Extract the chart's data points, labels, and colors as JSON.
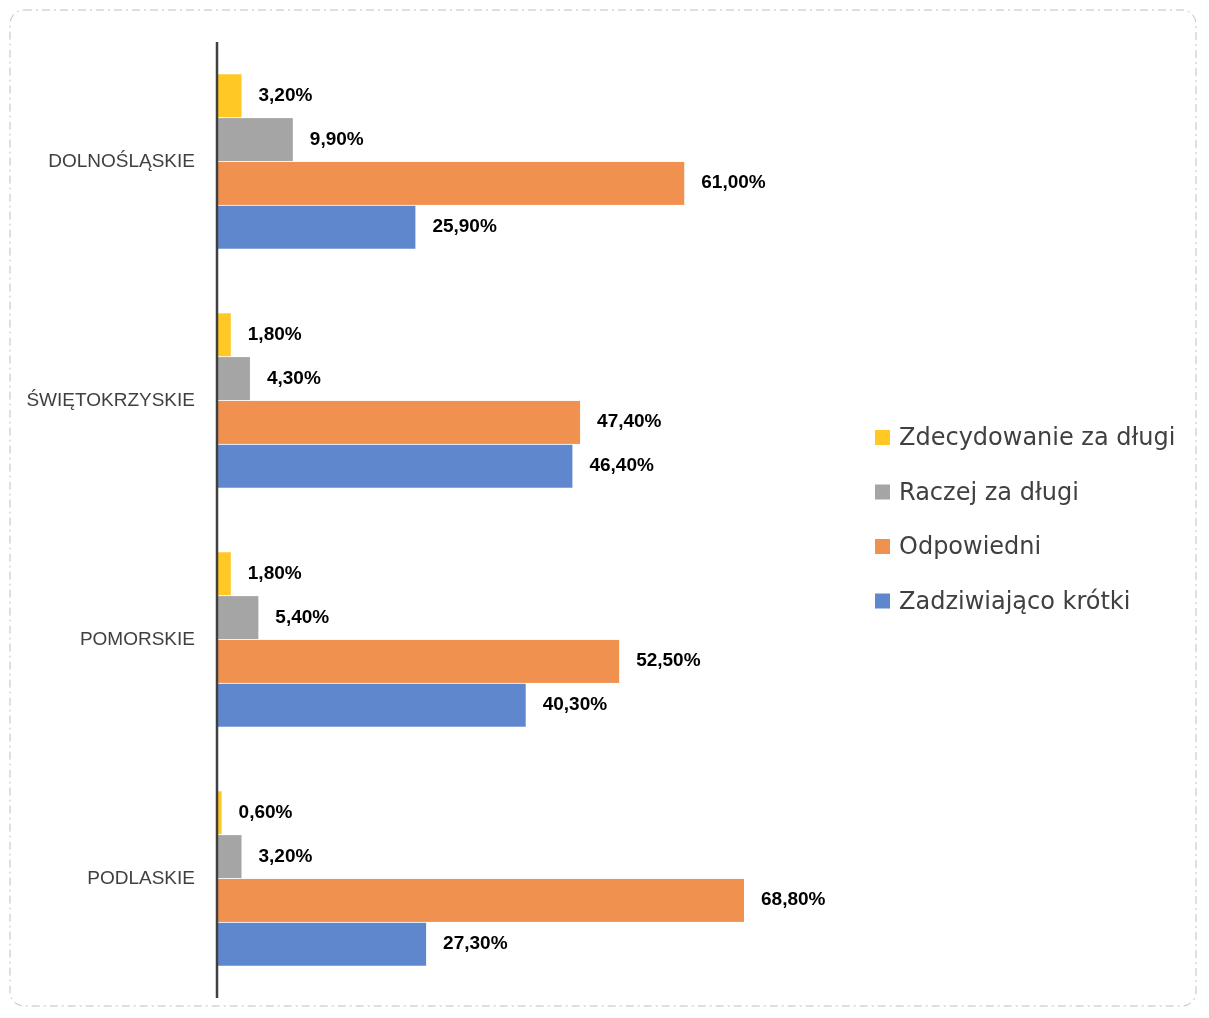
{
  "chart_data": {
    "type": "bar",
    "orientation": "horizontal",
    "categories": [
      "DOLNOŚLĄSKIE",
      "ŚWIĘTOKRZYSKIE",
      "POMORSKIE",
      "PODLASKIE"
    ],
    "legend": "right",
    "series": [
      {
        "name": "Zdecydowanie za długi",
        "color": "#ffc825",
        "values": [
          3.2,
          1.8,
          1.8,
          0.6
        ],
        "value_labels": [
          "3,20%",
          "1,80%",
          "1,80%",
          "0,60%"
        ]
      },
      {
        "name": "Raczej za długi",
        "color": "#a5a5a5",
        "values": [
          9.9,
          4.3,
          5.4,
          3.2
        ],
        "value_labels": [
          "9,90%",
          "4,30%",
          "5,40%",
          "3,20%"
        ]
      },
      {
        "name": "Odpowiedni",
        "color": "#f0914f",
        "values": [
          61.0,
          47.4,
          52.5,
          68.8
        ],
        "value_labels": [
          "61,00%",
          "47,40%",
          "52,50%",
          "68,80%"
        ]
      },
      {
        "name": "Zadziwiająco krótki",
        "color": "#5f87cd",
        "values": [
          25.9,
          46.4,
          40.3,
          27.3
        ],
        "value_labels": [
          "25,90%",
          "46,40%",
          "40,30%",
          "27,30%"
        ]
      }
    ]
  }
}
